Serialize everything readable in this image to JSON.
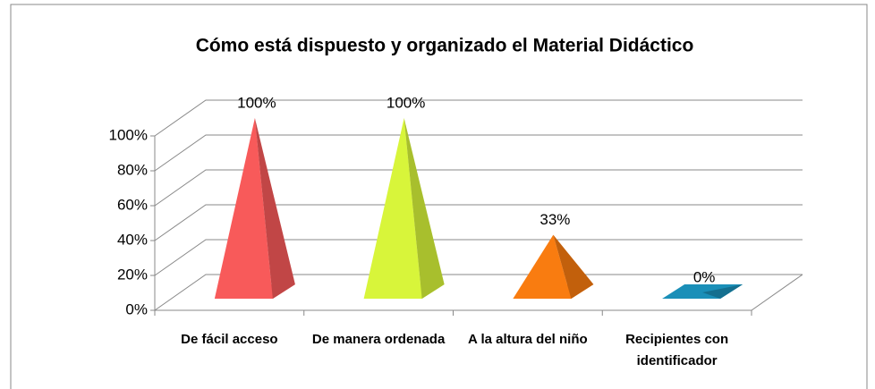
{
  "chart_data": {
    "type": "pyramid3d",
    "title": "Cómo está dispuesto y organizado el Material Didáctico",
    "categories": [
      "De fácil acceso",
      "De manera ordenada",
      "A la altura del niño",
      "Recipientes con identificador"
    ],
    "values": [
      100,
      100,
      33,
      0
    ],
    "value_labels": [
      "100%",
      "100%",
      "33%",
      "0%"
    ],
    "colors": [
      "#f85a5a",
      "#d8f53a",
      "#f97c10",
      "#1a8fb8"
    ],
    "ylim": [
      0,
      100
    ],
    "yticks": [
      {
        "value": 0,
        "label": "0%"
      },
      {
        "value": 20,
        "label": "20%"
      },
      {
        "value": 40,
        "label": "40%"
      },
      {
        "value": 60,
        "label": "60%"
      },
      {
        "value": 80,
        "label": "80%"
      },
      {
        "value": 100,
        "label": "100%"
      }
    ],
    "grid": true
  }
}
